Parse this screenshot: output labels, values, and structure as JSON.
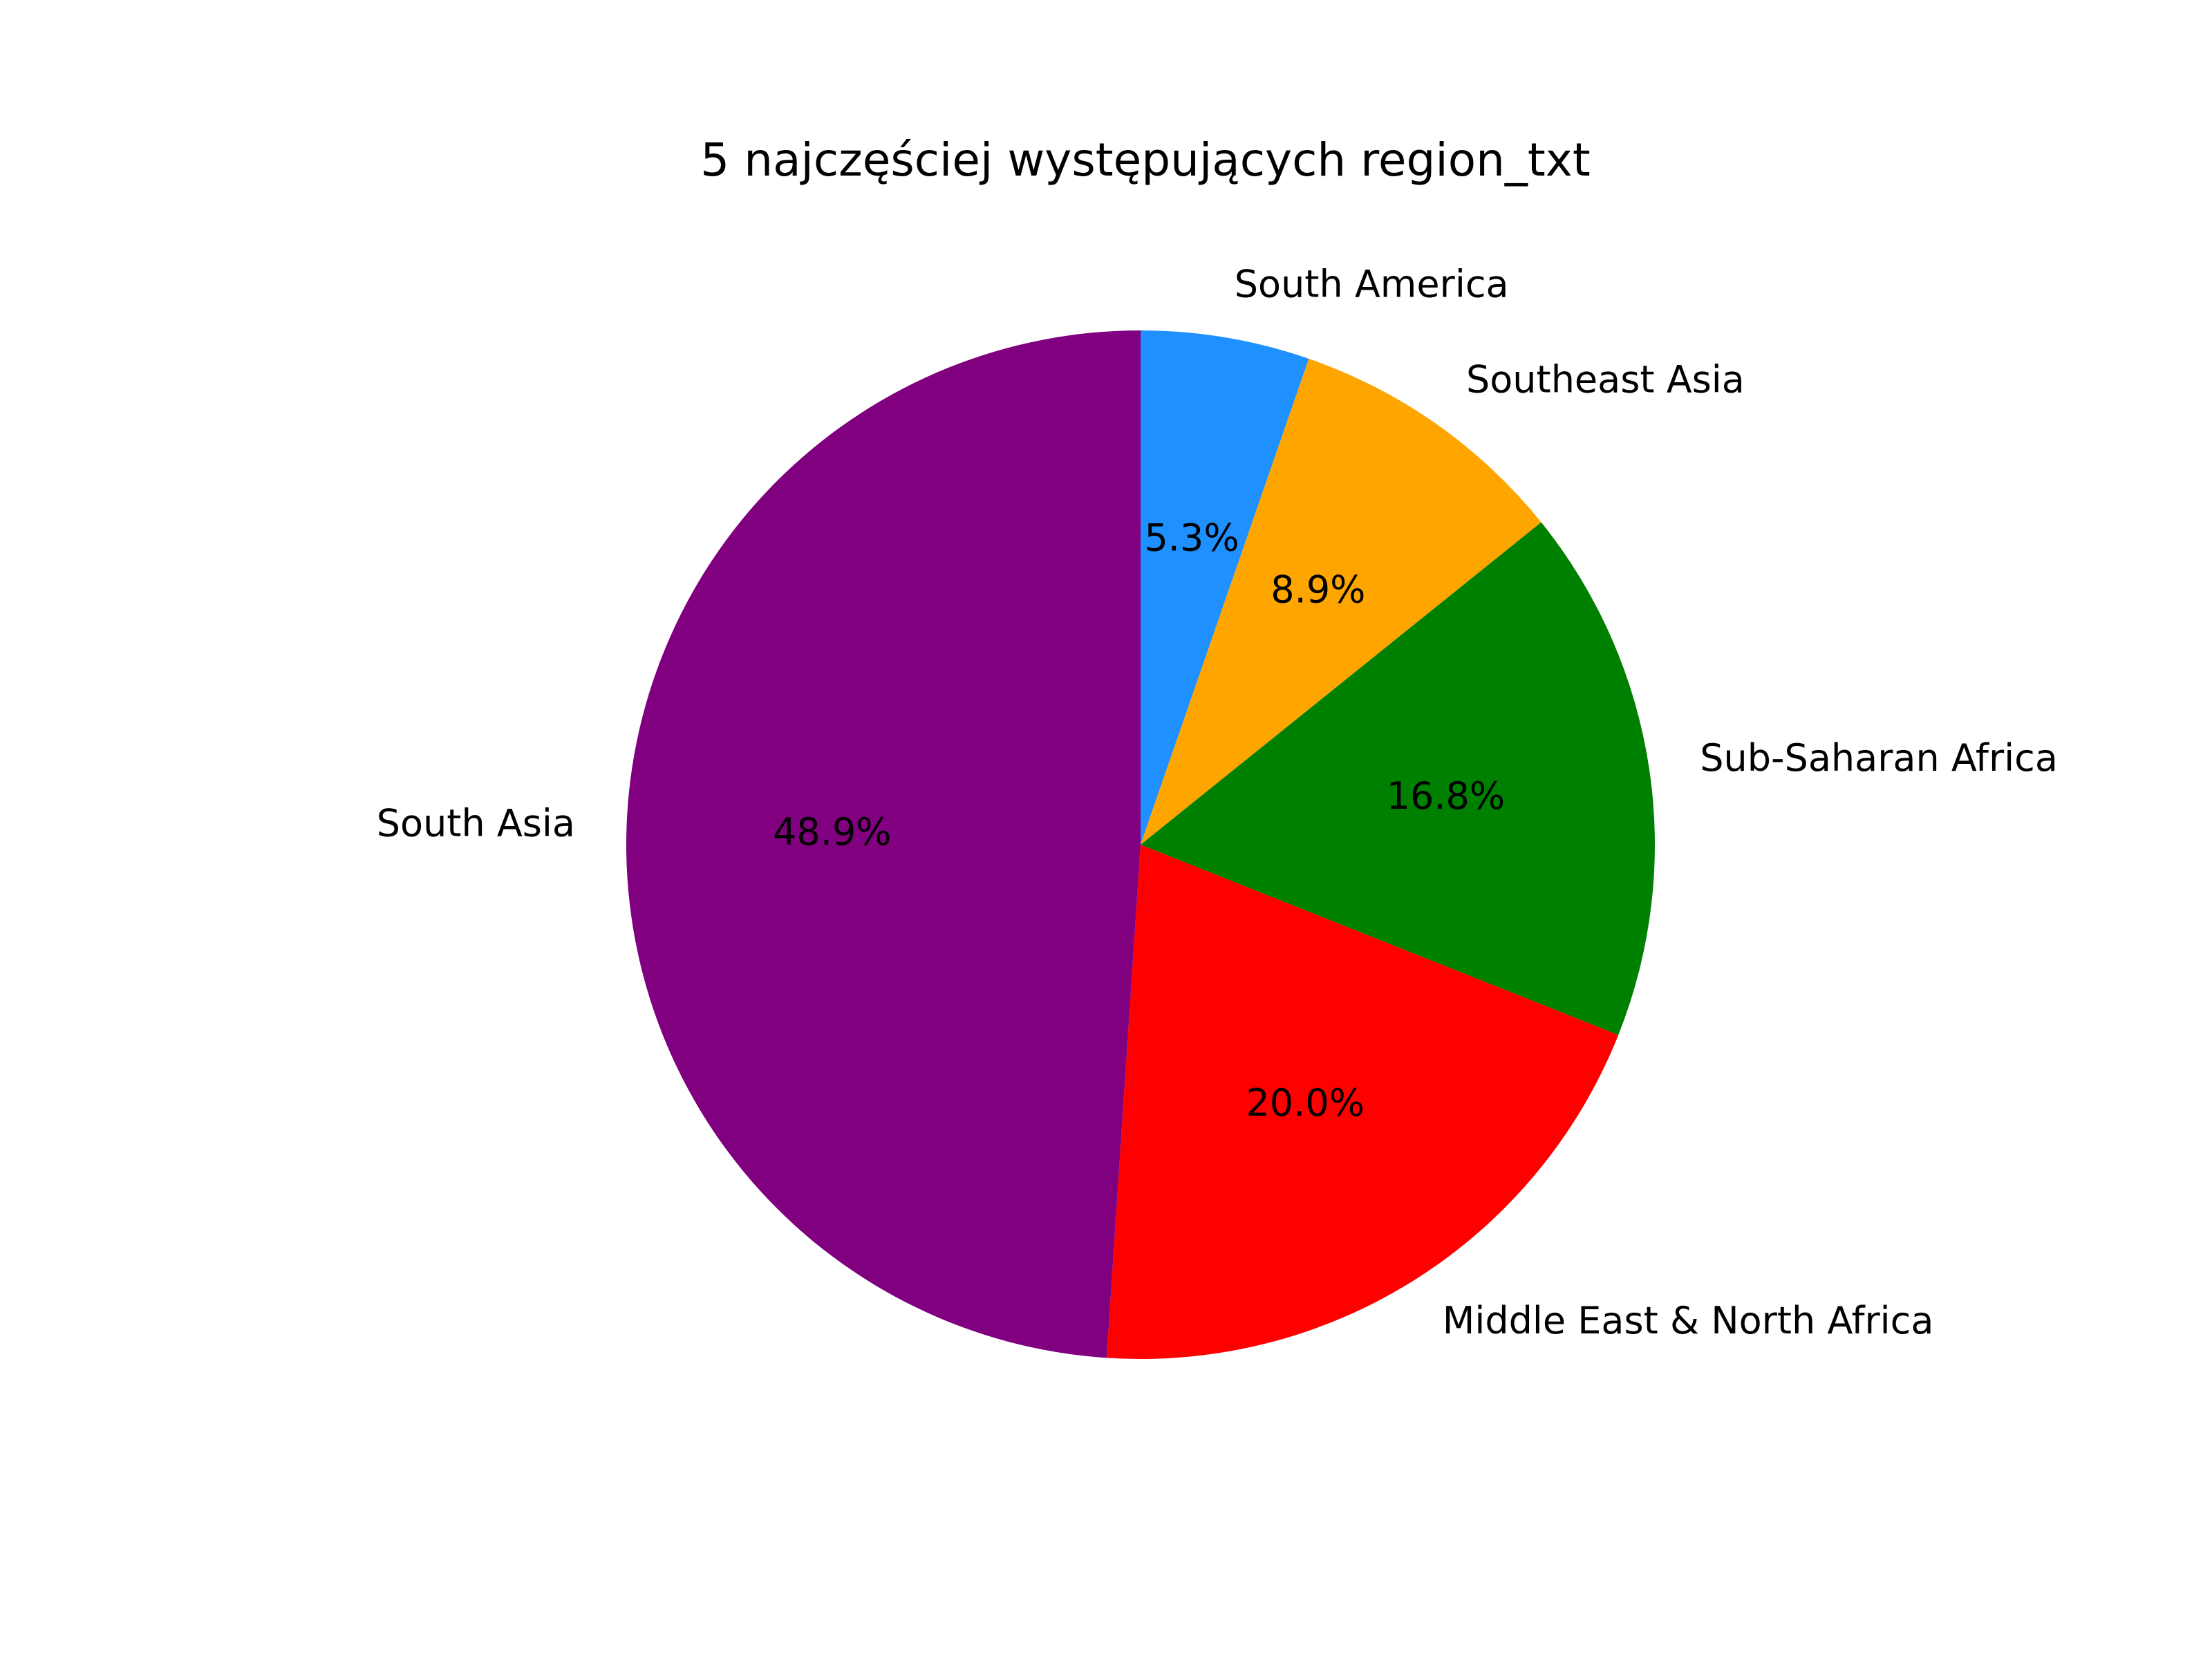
{
  "chart_data": {
    "type": "pie",
    "title": "5 najczęściej występujących region_txt",
    "slices": [
      {
        "label": "South America",
        "value": 5.3,
        "percent_label": "5.3%",
        "color": "#1E90FF"
      },
      {
        "label": "Southeast Asia",
        "value": 8.9,
        "percent_label": "8.9%",
        "color": "#FFA500"
      },
      {
        "label": "Sub-Saharan Africa",
        "value": 16.8,
        "percent_label": "16.8%",
        "color": "#008000"
      },
      {
        "label": "Middle East & North Africa",
        "value": 20.0,
        "percent_label": "20.0%",
        "color": "#FF0000"
      },
      {
        "label": "South Asia",
        "value": 48.9,
        "percent_label": "48.9%",
        "color": "#800080"
      }
    ],
    "start_angle": "top",
    "direction": "clockwise"
  }
}
